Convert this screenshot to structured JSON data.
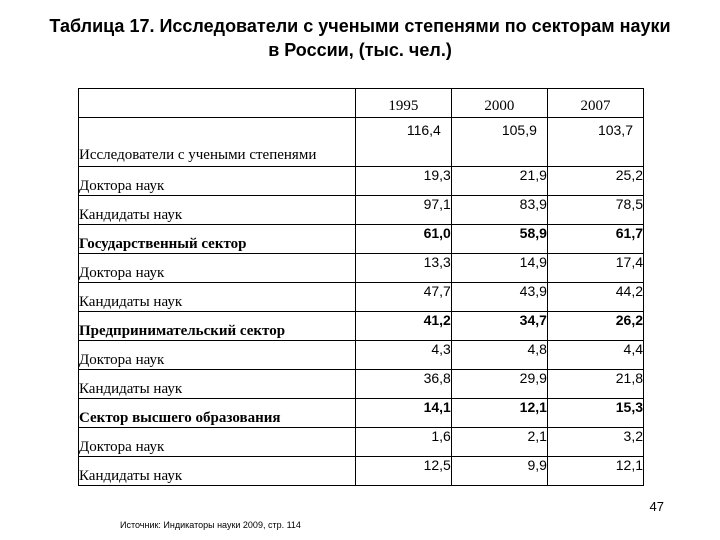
{
  "title": {
    "line1": "Таблица 17. Исследователи с учеными степенями по секторам науки",
    "line2": "в России, (тыс. чел.)"
  },
  "table": {
    "years": [
      "1995",
      "2000",
      "2007"
    ],
    "rows": [
      {
        "label": "Исследователи с учеными степенями",
        "values": [
          "116,4",
          "105,9",
          "103,7"
        ],
        "bold": false
      },
      {
        "label": "Доктора наук",
        "values": [
          "19,3",
          "21,9",
          "25,2"
        ],
        "bold": false
      },
      {
        "label": "Кандидаты наук",
        "values": [
          "97,1",
          "83,9",
          "78,5"
        ],
        "bold": false
      },
      {
        "label": "Государственный сектор",
        "values": [
          "61,0",
          "58,9",
          "61,7"
        ],
        "bold": true
      },
      {
        "label": "Доктора наук",
        "values": [
          "13,3",
          "14,9",
          "17,4"
        ],
        "bold": false
      },
      {
        "label": "Кандидаты наук",
        "values": [
          "47,7",
          "43,9",
          "44,2"
        ],
        "bold": false
      },
      {
        "label": "Предпринимательский сектор",
        "values": [
          "41,2",
          "34,7",
          "26,2"
        ],
        "bold": true
      },
      {
        "label": "Доктора наук",
        "values": [
          "4,3",
          "4,8",
          "4,4"
        ],
        "bold": false
      },
      {
        "label": "Кандидаты наук",
        "values": [
          "36,8",
          "29,9",
          "21,8"
        ],
        "bold": false
      },
      {
        "label": "Сектор высшего образования",
        "values": [
          "14,1",
          "12,1",
          "15,3"
        ],
        "bold": true
      },
      {
        "label": "Доктора наук",
        "values": [
          "1,6",
          "2,1",
          "3,2"
        ],
        "bold": false
      },
      {
        "label": "Кандидаты наук",
        "values": [
          "12,5",
          "9,9",
          "12,1"
        ],
        "bold": false
      }
    ]
  },
  "page_number": "47",
  "source": "Источник: Индикаторы науки 2009, стр. 114"
}
